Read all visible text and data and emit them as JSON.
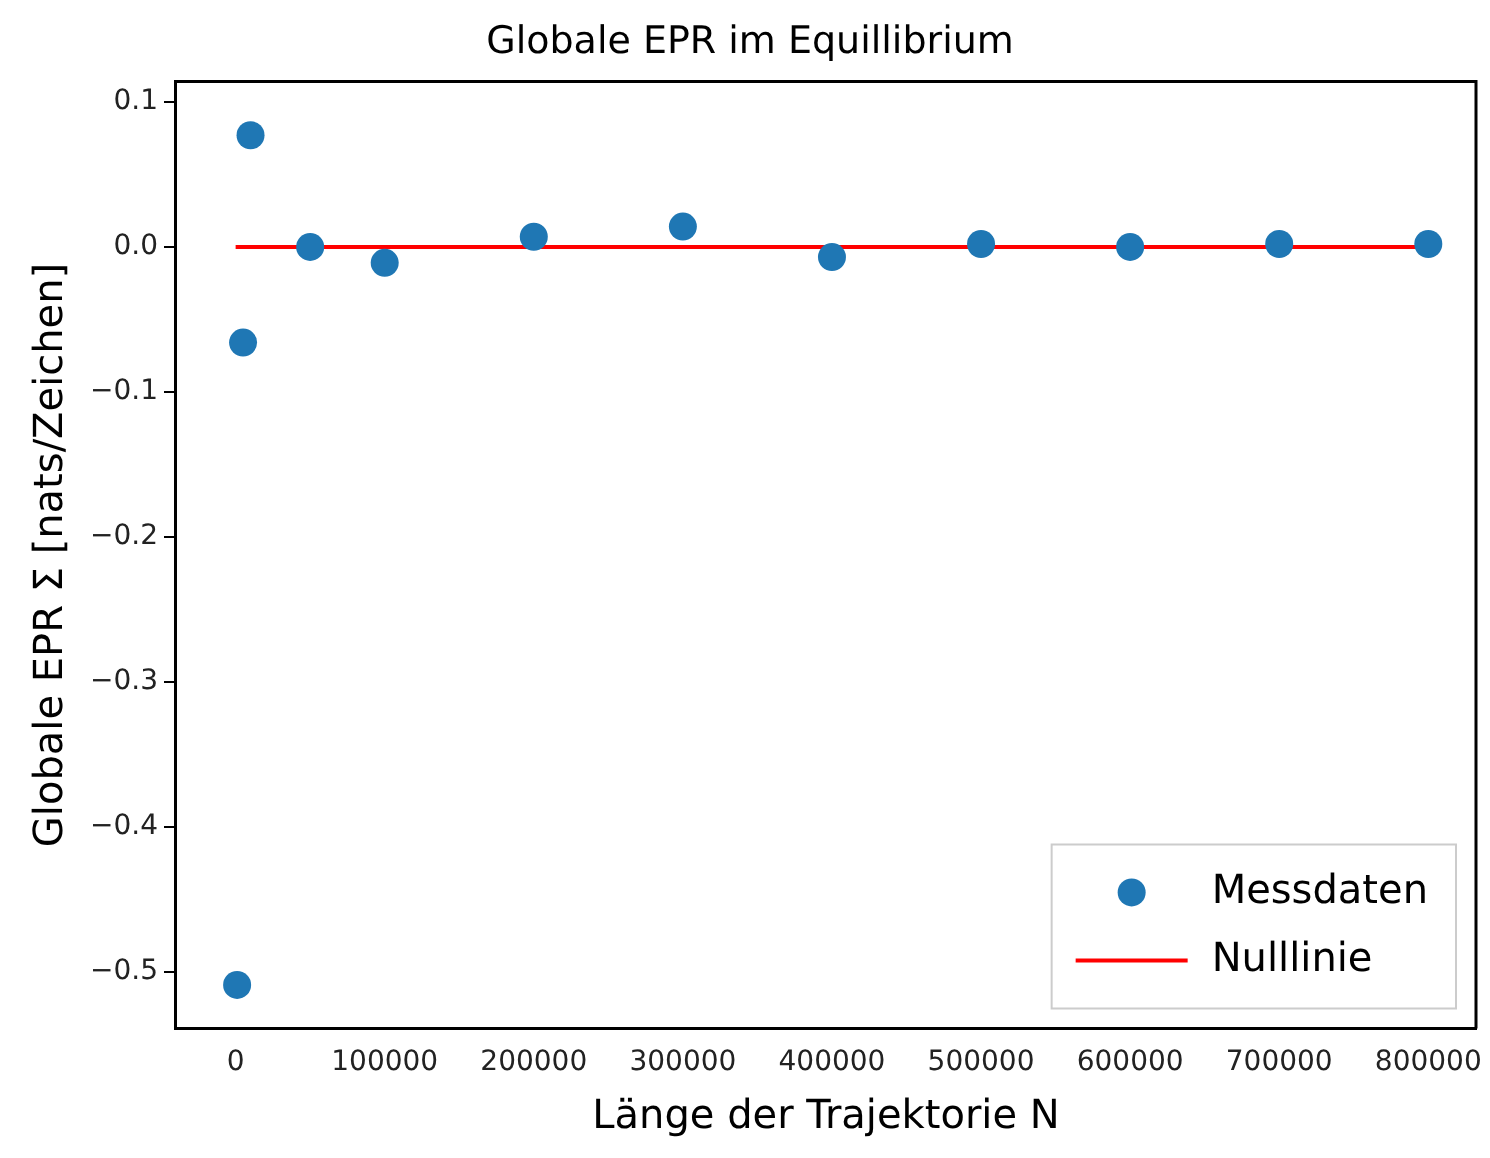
{
  "chart_data": {
    "type": "scatter",
    "title": "Globale EPR im Equillibrium",
    "xlabel": "Länge der Trajektorie N",
    "ylabel": "Globale EPR Σ [nats/Zeichen]",
    "series": [
      {
        "name": "Messdaten",
        "type": "scatter",
        "color": "#1f77b4",
        "marker": "circle",
        "x": [
          1000,
          5000,
          10000,
          50000,
          100000,
          200000,
          300000,
          400000,
          500000,
          600000,
          700000,
          800000
        ],
        "values": [
          -0.509,
          -0.066,
          0.077,
          0.0,
          -0.011,
          0.007,
          0.014,
          -0.007,
          0.002,
          0.0,
          0.002,
          0.002
        ]
      },
      {
        "name": "Nulllinie",
        "type": "line",
        "color": "#ff0000",
        "marker": "none",
        "x": [
          0,
          800000
        ],
        "values": [
          0,
          0
        ]
      }
    ],
    "xlim": [
      -40000,
      832000
    ],
    "xticks": [
      0,
      100000,
      200000,
      300000,
      400000,
      500000,
      600000,
      700000,
      800000
    ],
    "ylim": [
      -0.539,
      0.114
    ],
    "yticks": [
      -0.5,
      -0.4,
      -0.3,
      -0.2,
      -0.1,
      {
        "value": 0,
        "label": "0.0"
      },
      0.1
    ],
    "grid": false,
    "legend": "bottom right"
  }
}
